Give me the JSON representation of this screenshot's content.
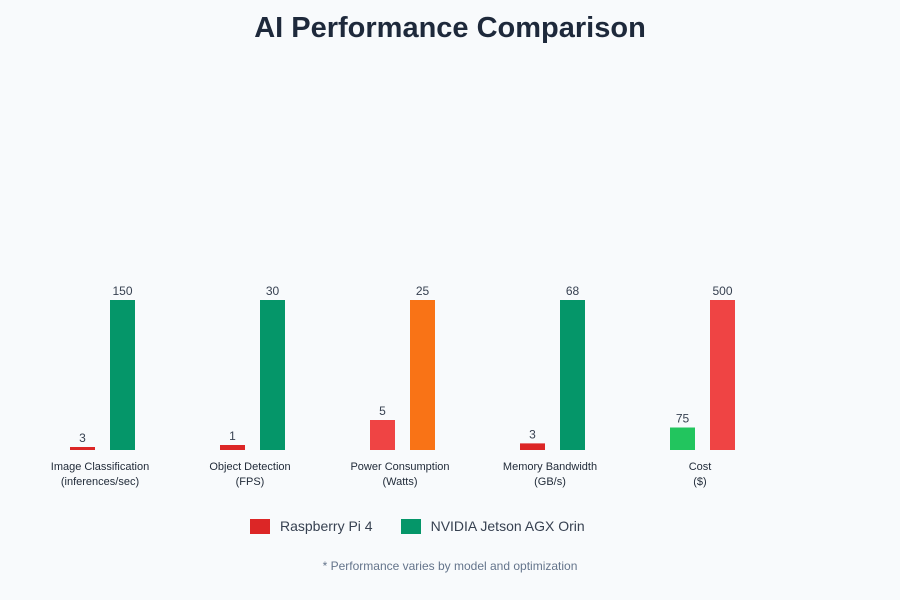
{
  "chart_data": {
    "type": "bar",
    "title": "AI Performance Comparison",
    "categories": [
      [
        "Image Classification",
        "(inferences/sec)"
      ],
      [
        "Object Detection",
        "(FPS)"
      ],
      [
        "Power Consumption",
        "(Watts)"
      ],
      [
        "Memory Bandwidth",
        "(GB/s)"
      ],
      [
        "Cost",
        "($)"
      ]
    ],
    "series": [
      {
        "name": "Raspberry Pi 4",
        "values": [
          3,
          1,
          5,
          3,
          75
        ],
        "colors": [
          "#dc2626",
          "#dc2626",
          "#ef4444",
          "#dc2626",
          "#22c55e"
        ]
      },
      {
        "name": "NVIDIA Jetson AGX Orin",
        "values": [
          150,
          30,
          25,
          68,
          500
        ],
        "colors": [
          "#059669",
          "#059669",
          "#f97316",
          "#059669",
          "#ef4444"
        ]
      }
    ],
    "grid": false,
    "legend_placement": "bottom"
  },
  "legend": {
    "items": [
      {
        "label": "Raspberry Pi 4",
        "color": "#dc2626"
      },
      {
        "label": "NVIDIA Jetson AGX Orin",
        "color": "#059669"
      }
    ]
  },
  "footnote": "* Performance varies by model and optimization"
}
